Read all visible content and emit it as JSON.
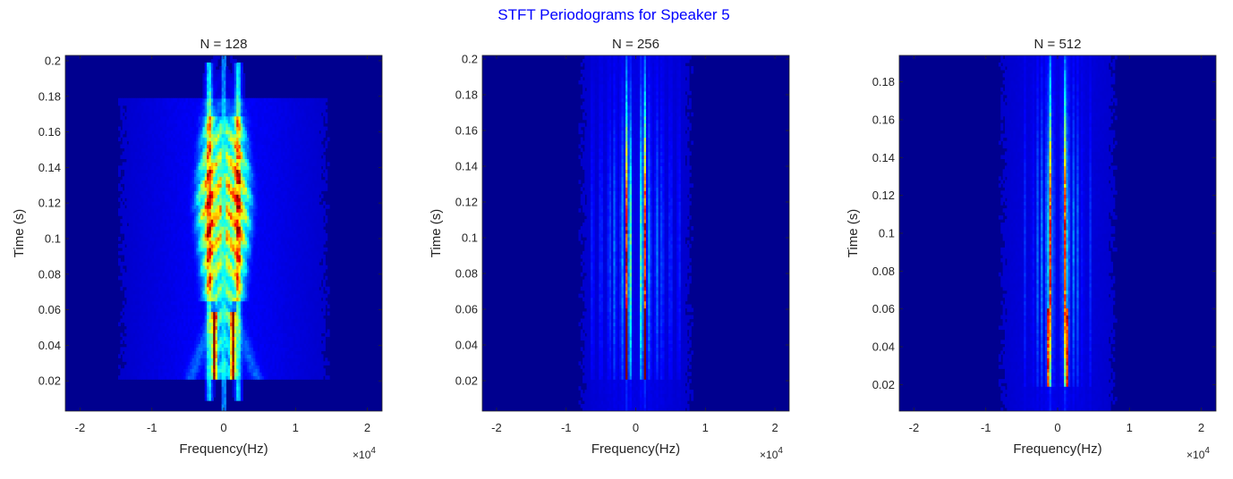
{
  "figure": {
    "title": "STFT Periodograms for Speaker 5",
    "colormap": [
      "#00008f",
      "#0000ff",
      "#00ffff",
      "#ffff00",
      "#ff0000",
      "#800000"
    ]
  },
  "chart_data": [
    {
      "type": "heatmap",
      "title": "N = 128",
      "xlabel": "Frequency(Hz)",
      "ylabel": "Time (s)",
      "x_multiplier": "10",
      "x_multiplier_exp": "4",
      "xlim": [
        -2.205,
        2.205
      ],
      "ylim": [
        0.003,
        0.203
      ],
      "xticks": [
        -2,
        -1,
        0,
        1,
        2
      ],
      "xtick_labels": [
        "-2",
        "-1",
        "0",
        "1",
        "2"
      ],
      "yticks": [
        0.02,
        0.04,
        0.06,
        0.08,
        0.1,
        0.12,
        0.14,
        0.16,
        0.18,
        0.2
      ],
      "ytick_labels": [
        "0.02",
        "0.04",
        "0.06",
        "0.08",
        "0.1",
        "0.12",
        "0.14",
        "0.16",
        "0.18",
        "0.2"
      ]
    },
    {
      "type": "heatmap",
      "title": "N = 256",
      "xlabel": "Frequency(Hz)",
      "ylabel": "Time (s)",
      "x_multiplier": "10",
      "x_multiplier_exp": "4",
      "xlim": [
        -2.205,
        2.205
      ],
      "ylim": [
        0.003,
        0.202
      ],
      "xticks": [
        -2,
        -1,
        0,
        1,
        2
      ],
      "xtick_labels": [
        "-2",
        "-1",
        "0",
        "1",
        "2"
      ],
      "yticks": [
        0.02,
        0.04,
        0.06,
        0.08,
        0.1,
        0.12,
        0.14,
        0.16,
        0.18,
        0.2
      ],
      "ytick_labels": [
        "0.02",
        "0.04",
        "0.06",
        "0.08",
        "0.1",
        "0.12",
        "0.14",
        "0.16",
        "0.18",
        "0.2"
      ]
    },
    {
      "type": "heatmap",
      "title": "N = 512",
      "xlabel": "Frequency(Hz)",
      "ylabel": "Time (s)",
      "x_multiplier": "10",
      "x_multiplier_exp": "4",
      "xlim": [
        -2.205,
        2.205
      ],
      "ylim": [
        0.006,
        0.194
      ],
      "xticks": [
        -2,
        -1,
        0,
        1,
        2
      ],
      "xtick_labels": [
        "-2",
        "-1",
        "0",
        "1",
        "2"
      ],
      "yticks": [
        0.02,
        0.04,
        0.06,
        0.08,
        0.1,
        0.12,
        0.14,
        0.16,
        0.18
      ],
      "ytick_labels": [
        "0.02",
        "0.04",
        "0.06",
        "0.08",
        "0.1",
        "0.12",
        "0.14",
        "0.16",
        "0.18"
      ]
    }
  ]
}
